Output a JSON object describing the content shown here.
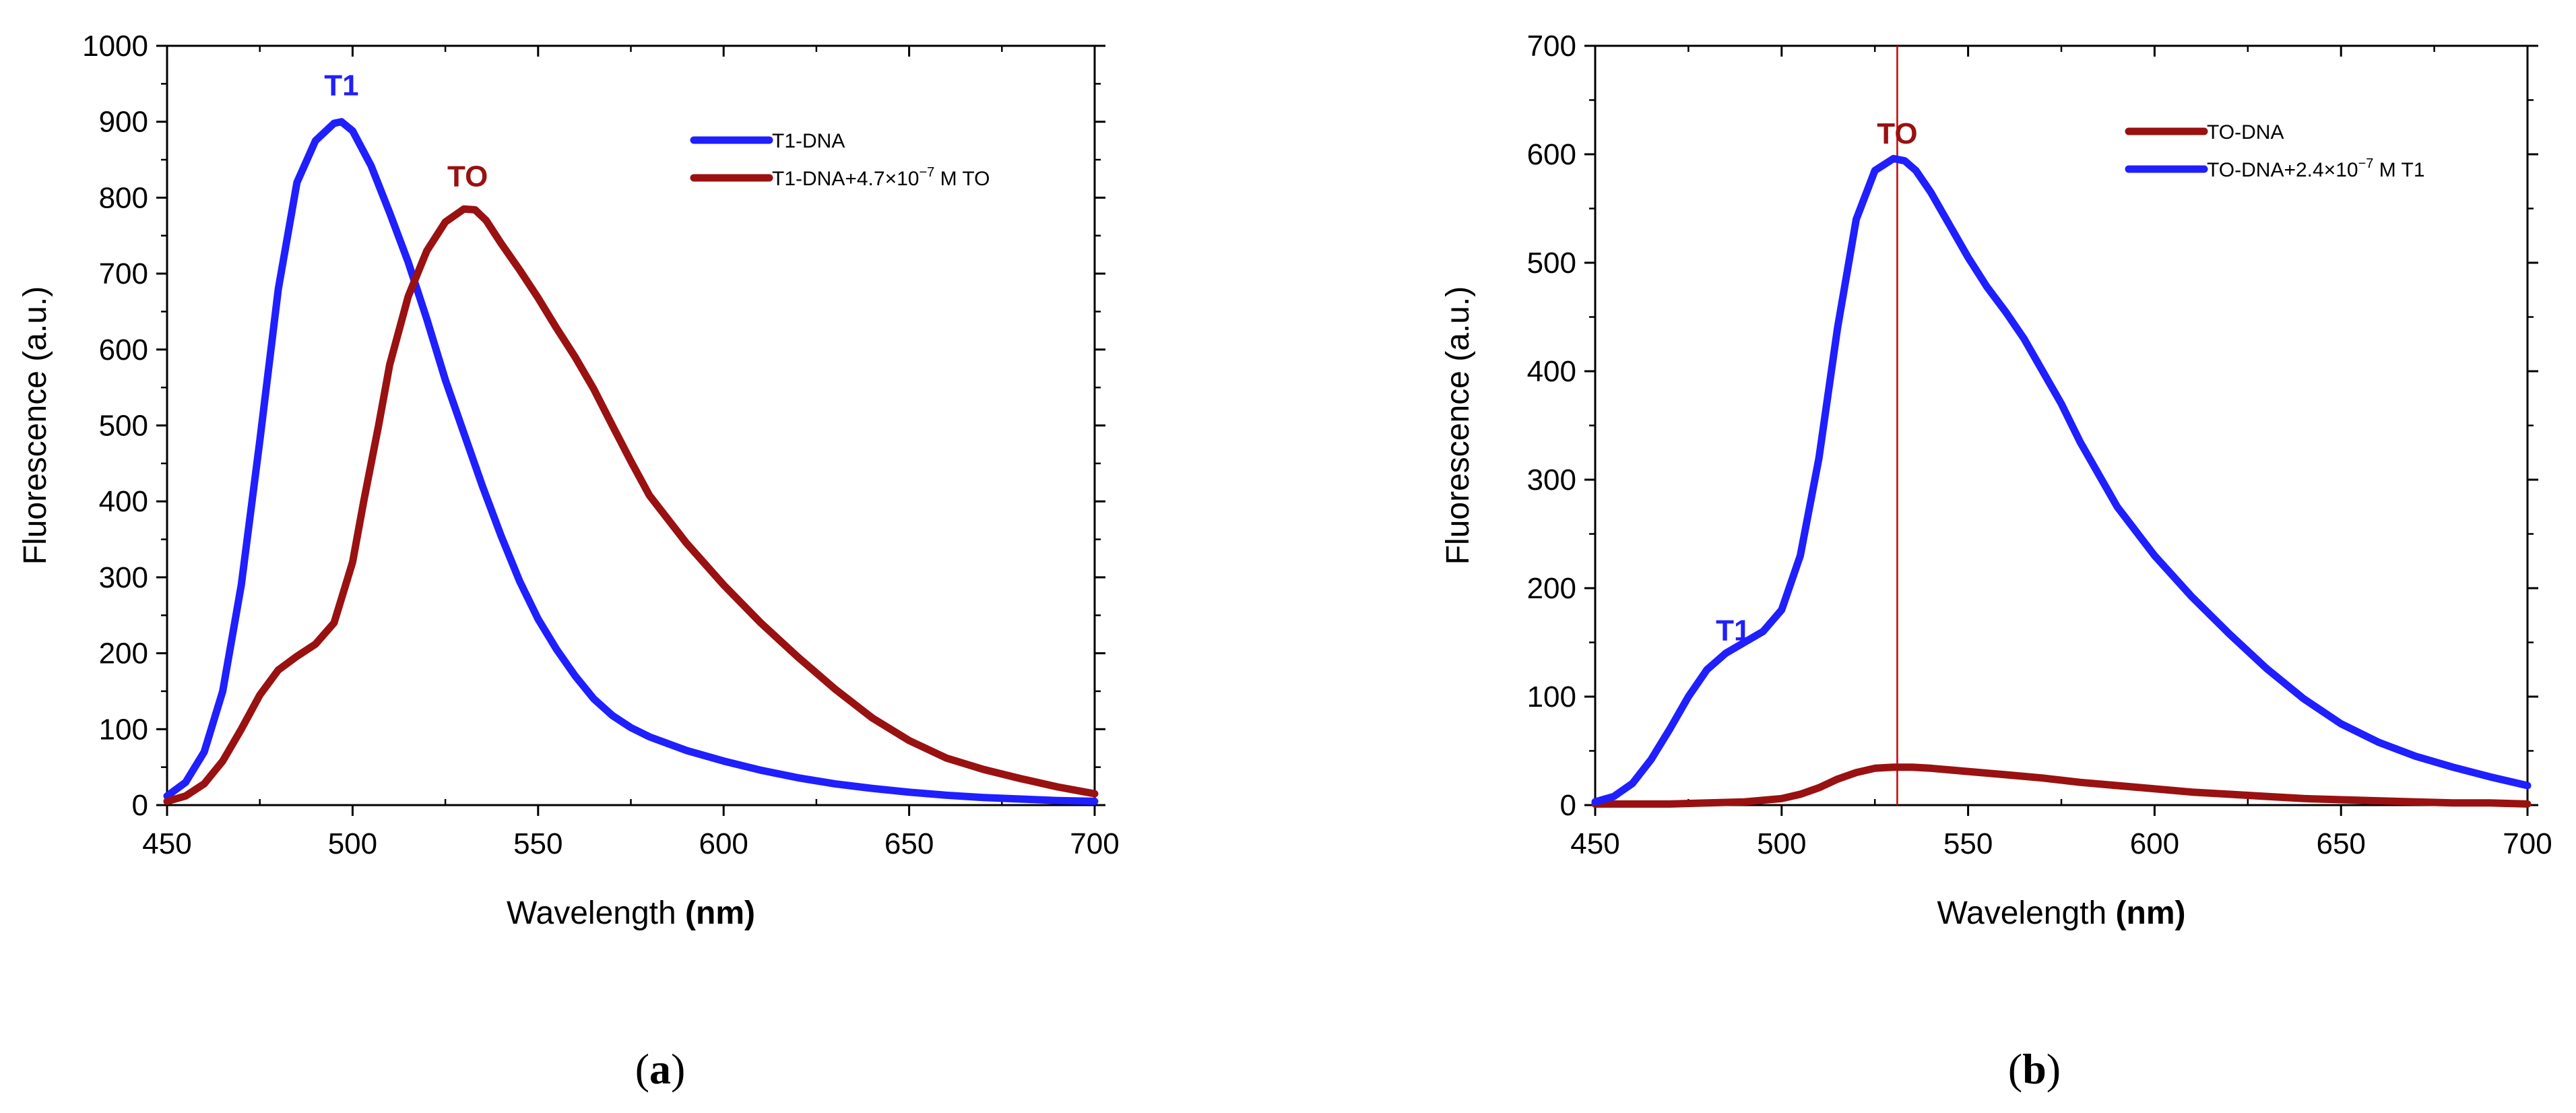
{
  "chart_data": [
    {
      "type": "line",
      "caption_open": "(",
      "caption_letter": "a",
      "caption_close": ")",
      "xlabel": "Wavelength",
      "xunit": "nm",
      "ylabel": "Fluorescence (a.u.)",
      "xlim": [
        450,
        700
      ],
      "ylim": [
        0,
        1000
      ],
      "xticks": [
        450,
        500,
        550,
        600,
        650,
        700
      ],
      "yticks": [
        0,
        100,
        200,
        300,
        400,
        500,
        600,
        700,
        800,
        900,
        1000
      ],
      "minor_x_step": 25,
      "minor_y_step": 50,
      "vline": null,
      "annotations": [
        {
          "text": "T1",
          "x": 497,
          "y": 935,
          "color": "#1f1fff"
        },
        {
          "text": "TO",
          "x": 531,
          "y": 815,
          "color": "#991111"
        }
      ],
      "series": [
        {
          "name": "T1-DNA",
          "color": "#1f1fff",
          "x": [
            450,
            455,
            460,
            465,
            470,
            475,
            480,
            485,
            490,
            495,
            497,
            500,
            505,
            510,
            515,
            520,
            525,
            530,
            535,
            540,
            545,
            550,
            555,
            560,
            565,
            570,
            575,
            580,
            590,
            600,
            610,
            620,
            630,
            640,
            650,
            660,
            670,
            680,
            690,
            700
          ],
          "y": [
            12,
            30,
            70,
            150,
            290,
            480,
            680,
            820,
            875,
            898,
            900,
            888,
            842,
            780,
            715,
            640,
            560,
            490,
            420,
            355,
            295,
            245,
            205,
            170,
            140,
            118,
            102,
            90,
            72,
            58,
            46,
            36,
            28,
            22,
            17,
            13,
            10,
            8,
            6,
            5
          ]
        },
        {
          "name": "T1-DNA+4.7×10",
          "name_exp": "−7",
          "name_suffix": " M TO",
          "color": "#991111",
          "x": [
            450,
            455,
            460,
            465,
            470,
            475,
            480,
            485,
            490,
            495,
            500,
            503,
            507,
            510,
            515,
            520,
            525,
            530,
            533,
            536,
            540,
            545,
            550,
            555,
            560,
            565,
            570,
            575,
            580,
            590,
            600,
            610,
            620,
            630,
            640,
            650,
            660,
            670,
            680,
            690,
            700
          ],
          "y": [
            5,
            12,
            28,
            58,
            100,
            145,
            178,
            196,
            212,
            240,
            320,
            400,
            500,
            580,
            670,
            730,
            768,
            785,
            784,
            770,
            740,
            705,
            668,
            628,
            590,
            548,
            500,
            453,
            408,
            345,
            290,
            240,
            195,
            153,
            115,
            85,
            62,
            47,
            35,
            24,
            15
          ]
        }
      ]
    },
    {
      "type": "line",
      "caption_open": "(",
      "caption_letter": "b",
      "caption_close": ")",
      "xlabel": "Wavelength",
      "xunit": "nm",
      "ylabel": "Fluorescence (a.u.)",
      "xlim": [
        450,
        700
      ],
      "ylim": [
        0,
        700
      ],
      "xticks": [
        450,
        500,
        550,
        600,
        650,
        700
      ],
      "yticks": [
        0,
        100,
        200,
        300,
        400,
        500,
        600,
        700
      ],
      "minor_x_step": 25,
      "minor_y_step": 50,
      "vline": {
        "x": 531,
        "color": "#cc0000"
      },
      "annotations": [
        {
          "text": "T1",
          "x": 487,
          "y": 152,
          "color": "#1f1fff"
        },
        {
          "text": "TO",
          "x": 531,
          "y": 610,
          "color": "#991111"
        }
      ],
      "series": [
        {
          "name": "TO-DNA",
          "color": "#991111",
          "x": [
            450,
            460,
            470,
            480,
            490,
            500,
            505,
            510,
            515,
            520,
            525,
            530,
            535,
            540,
            550,
            560,
            570,
            580,
            590,
            600,
            610,
            620,
            630,
            640,
            650,
            660,
            670,
            680,
            690,
            700
          ],
          "y": [
            1,
            1,
            1,
            2,
            3,
            6,
            10,
            16,
            24,
            30,
            34,
            35,
            35,
            34,
            31,
            28,
            25,
            21,
            18,
            15,
            12,
            10,
            8,
            6,
            5,
            4,
            3,
            2,
            2,
            1
          ]
        },
        {
          "name": "TO-DNA+2.4×10",
          "name_exp": "−7",
          "name_suffix": " M T1",
          "color": "#1f1fff",
          "x": [
            450,
            455,
            460,
            465,
            470,
            475,
            480,
            485,
            490,
            495,
            500,
            505,
            510,
            515,
            520,
            525,
            530,
            533,
            536,
            540,
            545,
            550,
            555,
            560,
            565,
            570,
            575,
            580,
            590,
            600,
            610,
            620,
            630,
            640,
            650,
            660,
            670,
            680,
            690,
            700
          ],
          "y": [
            3,
            8,
            20,
            42,
            70,
            100,
            125,
            140,
            150,
            160,
            180,
            230,
            320,
            440,
            540,
            585,
            596,
            594,
            585,
            565,
            535,
            505,
            478,
            455,
            430,
            400,
            370,
            335,
            275,
            230,
            192,
            158,
            126,
            98,
            75,
            58,
            45,
            35,
            26,
            18
          ]
        }
      ]
    }
  ]
}
